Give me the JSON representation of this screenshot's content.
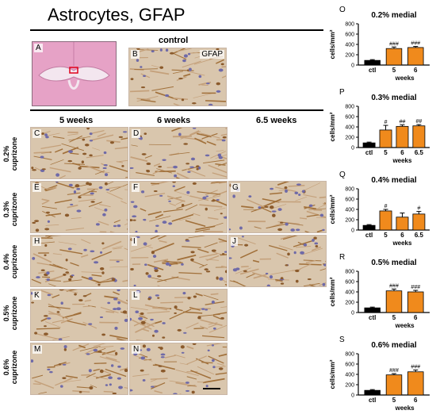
{
  "figure": {
    "title": "Astrocytes, GFAP",
    "control_label": "control",
    "gfap_label": "GFAP",
    "column_headers": [
      "5 weeks",
      "6 weeks",
      "6.5 weeks"
    ],
    "row_labels": [
      {
        "pct": "0.2%",
        "word": "cuprizone"
      },
      {
        "pct": "0.3%",
        "word": "cuprizone"
      },
      {
        "pct": "0.4%",
        "word": "cuprizone"
      },
      {
        "pct": "0.5%",
        "word": "cuprizone"
      },
      {
        "pct": "0.6%",
        "word": "cuprizone"
      }
    ],
    "panel_letters": [
      "A",
      "B",
      "C",
      "D",
      "E",
      "F",
      "G",
      "H",
      "I",
      "J",
      "K",
      "L",
      "M",
      "N"
    ],
    "colors": {
      "ctl_bar": "#000000",
      "treated_bar": "#f08a1c",
      "atlas": "#e9a4c8",
      "tissue": "#d9c6ad"
    }
  },
  "chart_data": [
    {
      "letter": "O",
      "type": "bar",
      "title": "0.2% medial",
      "ylabel": "cells/mm²",
      "xlabel": "weeks",
      "ylim": [
        0,
        800
      ],
      "yticks": [
        0,
        200,
        400,
        600,
        800
      ],
      "categories": [
        "ctl",
        "5",
        "6"
      ],
      "values": [
        90,
        320,
        340
      ],
      "errors": [
        15,
        30,
        20
      ],
      "annotations": [
        "",
        "###",
        "###"
      ]
    },
    {
      "letter": "P",
      "type": "bar",
      "title": "0.3% medial",
      "ylabel": "cells/mm²",
      "xlabel": "weeks",
      "ylim": [
        0,
        800
      ],
      "yticks": [
        0,
        200,
        400,
        600,
        800
      ],
      "categories": [
        "ctl",
        "5",
        "6",
        "6.5"
      ],
      "values": [
        90,
        340,
        410,
        420
      ],
      "errors": [
        15,
        90,
        30,
        25
      ],
      "annotations": [
        "",
        "#",
        "##",
        "##"
      ]
    },
    {
      "letter": "Q",
      "type": "bar",
      "title": "0.4% medial",
      "ylabel": "cells/mm²",
      "xlabel": "weeks",
      "ylim": [
        0,
        800
      ],
      "yticks": [
        0,
        200,
        400,
        600,
        800
      ],
      "categories": [
        "ctl",
        "5",
        "6",
        "6.5"
      ],
      "values": [
        90,
        370,
        250,
        310
      ],
      "errors": [
        15,
        30,
        80,
        50
      ],
      "annotations": [
        "",
        "#",
        "",
        "#"
      ]
    },
    {
      "letter": "R",
      "type": "bar",
      "title": "0.5% medial",
      "ylabel": "cells/mm²",
      "xlabel": "weeks",
      "ylim": [
        0,
        800
      ],
      "yticks": [
        0,
        200,
        400,
        600,
        800
      ],
      "categories": [
        "ctl",
        "5",
        "6"
      ],
      "values": [
        90,
        420,
        400
      ],
      "errors": [
        15,
        35,
        30
      ],
      "annotations": [
        "",
        "###",
        "###"
      ]
    },
    {
      "letter": "S",
      "type": "bar",
      "title": "0.6% medial",
      "ylabel": "cells/mm²",
      "xlabel": "weeks",
      "ylim": [
        0,
        800
      ],
      "yticks": [
        0,
        200,
        400,
        600,
        800
      ],
      "categories": [
        "ctl",
        "5",
        "6"
      ],
      "values": [
        90,
        390,
        450
      ],
      "errors": [
        15,
        25,
        35
      ],
      "annotations": [
        "",
        "###",
        "###"
      ]
    }
  ]
}
